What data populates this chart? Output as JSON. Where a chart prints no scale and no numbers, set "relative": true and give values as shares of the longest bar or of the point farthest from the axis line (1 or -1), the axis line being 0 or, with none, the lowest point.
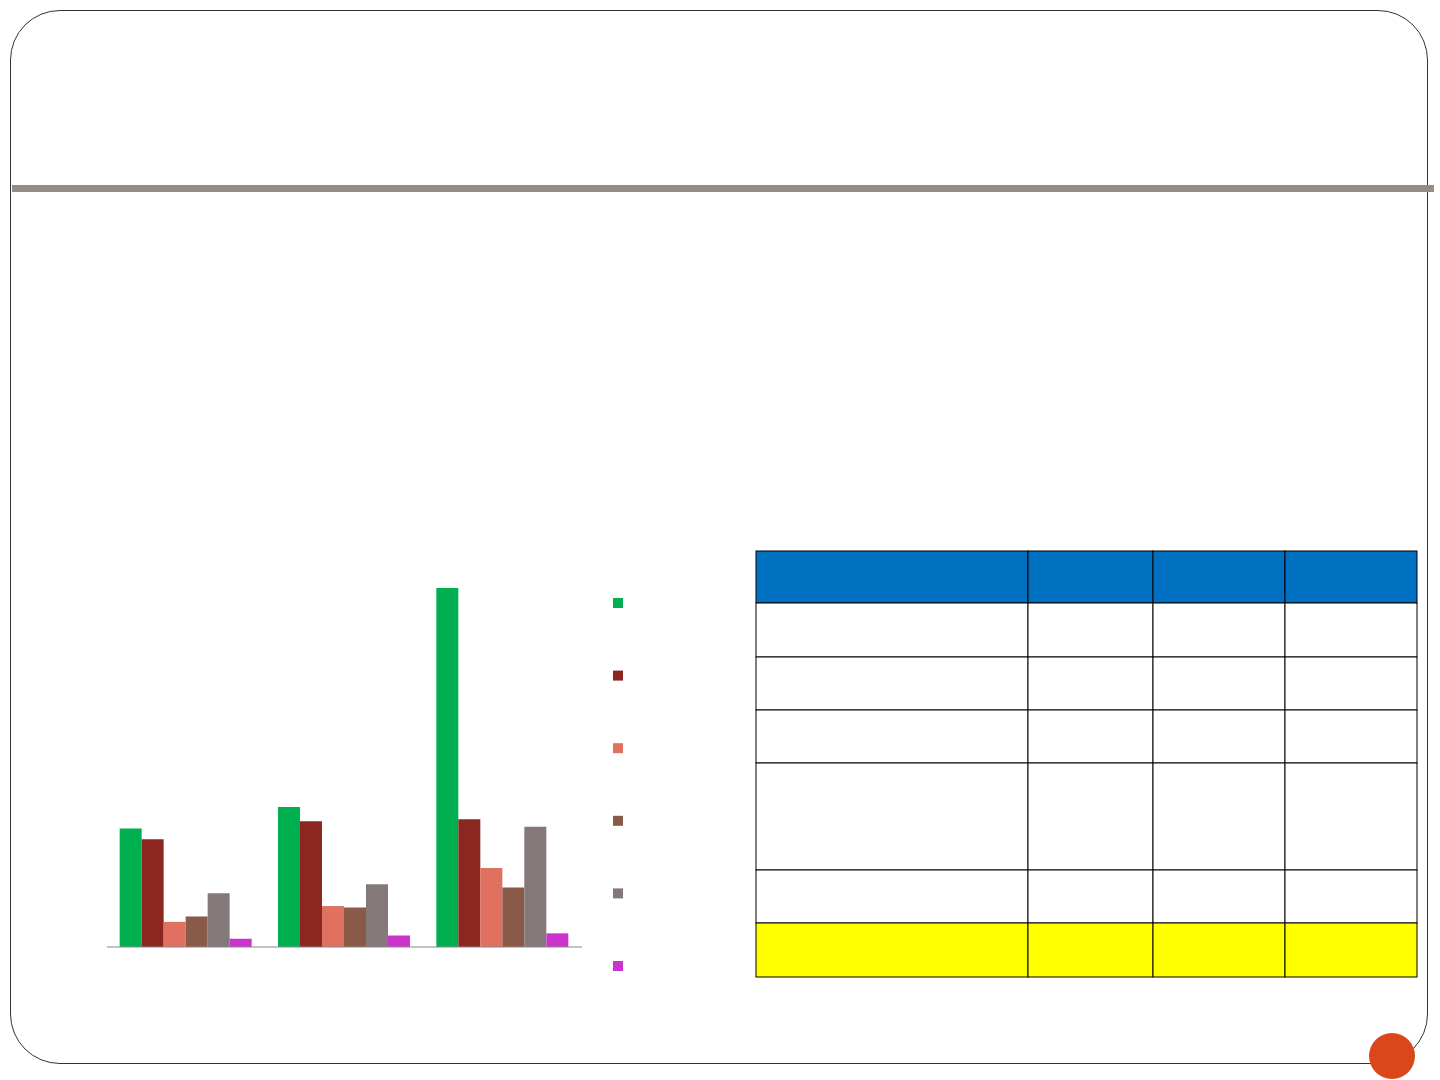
{
  "chart_data": {
    "type": "bar",
    "relative": true,
    "categories": [
      null,
      null,
      null
    ],
    "series": [
      {
        "color": "#00b050",
        "values": [
          0.33,
          0.39,
          1
        ]
      },
      {
        "color": "#8b2720",
        "values": [
          0.3,
          0.35,
          0.356
        ]
      },
      {
        "color": "#e07060",
        "values": [
          0.07,
          0.114,
          0.22
        ]
      },
      {
        "color": "#8a5a48",
        "values": [
          0.085,
          0.11,
          0.166
        ]
      },
      {
        "color": "#857878",
        "values": [
          0.15,
          0.175,
          0.335
        ]
      },
      {
        "color": "#cc33cc",
        "values": [
          0.023,
          0.032,
          0.038
        ]
      }
    ],
    "grid": false,
    "legend": false
  }
}
